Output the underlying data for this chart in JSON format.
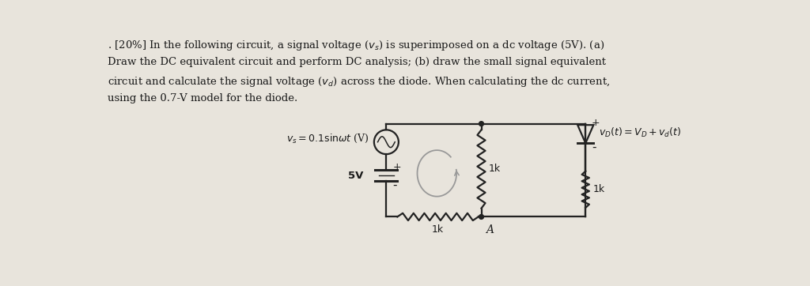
{
  "bg_color": "#e8e4dc",
  "text_color": "#1a1a1a",
  "line_color": "#1a1a1a",
  "circuit_line_color": "#222222",
  "loop_arrow_color": "#999999",
  "question_lines": [
    ". [20%] In the following circuit, a signal voltage ($v_s$) is superimposed on a dc voltage (5V). (a)",
    "Draw the DC equivalent circuit and perform DC analysis; (b) draw the small signal equivalent",
    "circuit and calculate the signal voltage ($v_d$) across the diode. When calculating the dc current,",
    "using the 0.7-V model for the diode."
  ],
  "vs_label": "$v_s= 0.1\\mathrm{sin}\\omega t$ (V)",
  "vd_label": "$v_D(t) = V_D + v_d(t)$",
  "label_5V": "5V",
  "label_1k_bottom": "1k",
  "label_A": "A",
  "label_1k_mid": "1k",
  "label_1k_right": "1k",
  "plus_diode": "+",
  "minus_diode": "-",
  "plus_bat": "+",
  "minus_bat": "-"
}
